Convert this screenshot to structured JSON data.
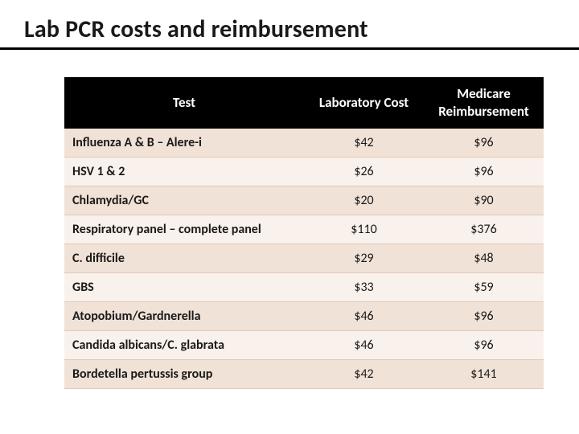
{
  "title": "Lab PCR costs and reimbursement",
  "table": {
    "type": "table",
    "header_bg": "#000000",
    "header_fg": "#ffffff",
    "row_odd_bg": "#f1e2d7",
    "row_even_bg": "#f9f1eb",
    "row_border": "#e2c9b8",
    "title_fontsize": 30,
    "header_fontsize": 17,
    "cell_fontsize": 16,
    "column_widths_pct": [
      50,
      25,
      25
    ],
    "column_align": [
      "left",
      "center",
      "center"
    ],
    "columns": [
      "Test",
      "Laboratory Cost",
      "Medicare Reimbursement"
    ],
    "rows": [
      [
        "Influenza A & B – Alere-i",
        "$42",
        "$96"
      ],
      [
        "HSV 1 & 2",
        "$26",
        "$96"
      ],
      [
        "Chlamydia/GC",
        "$20",
        "$90"
      ],
      [
        "Respiratory panel – complete panel",
        "$110",
        "$376"
      ],
      [
        "C. difficile",
        "$29",
        "$48"
      ],
      [
        "GBS",
        "$33",
        "$59"
      ],
      [
        "Atopobium/Gardnerella",
        "$46",
        "$96"
      ],
      [
        "Candida albicans/C. glabrata",
        "$46",
        "$96"
      ],
      [
        "Bordetella pertussis group",
        "$42",
        "$141"
      ]
    ]
  }
}
